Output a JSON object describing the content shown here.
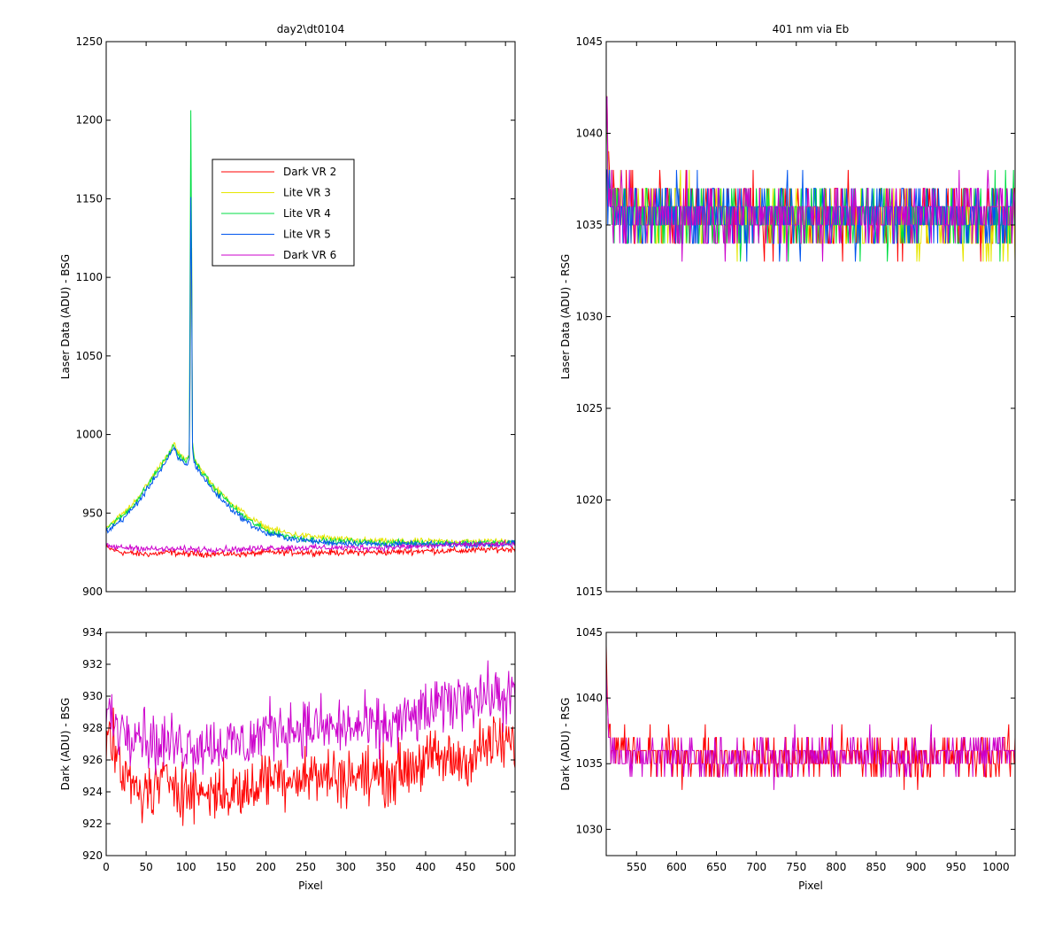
{
  "chart_data": [
    {
      "type": "line",
      "title": "day2\\dt0104",
      "xlabel": "",
      "ylabel": "Laser Data (ADU) - BSG",
      "xlim": [
        0,
        512
      ],
      "ylim": [
        900,
        1250
      ],
      "xticks": [
        0,
        50,
        100,
        150,
        200,
        250,
        300,
        350,
        400,
        450,
        500
      ],
      "yticks": [
        900,
        950,
        1000,
        1050,
        1100,
        1150,
        1200,
        1250
      ],
      "ytick_labels": [
        "900",
        "950",
        "1000",
        "1050",
        "1100",
        "1150",
        "1200",
        "1250"
      ],
      "legend_position": "upper-middle-left",
      "grid": false,
      "series": [
        {
          "name": "Dark VR 2",
          "color": "#ff0000",
          "x": [
            0,
            20,
            40,
            60,
            80,
            100,
            120,
            140,
            160,
            180,
            200,
            250,
            300,
            350,
            400,
            450,
            480,
            500,
            512
          ],
          "y": [
            928,
            925,
            924,
            924,
            925,
            924,
            924,
            924,
            924,
            924,
            925,
            925,
            925,
            925,
            926,
            926,
            927,
            927,
            927
          ]
        },
        {
          "name": "Lite VR 3",
          "color": "#e6e600",
          "x": [
            0,
            10,
            20,
            30,
            40,
            50,
            60,
            70,
            80,
            85,
            90,
            100,
            104,
            105,
            106,
            107,
            108,
            110,
            120,
            130,
            140,
            150,
            160,
            170,
            180,
            190,
            200,
            220,
            240,
            260,
            280,
            300,
            350,
            400,
            450,
            500,
            512
          ],
          "y": [
            941,
            945,
            949,
            954,
            960,
            967,
            975,
            982,
            990,
            994,
            988,
            984,
            986,
            1030,
            1090,
            1120,
            995,
            985,
            977,
            970,
            964,
            960,
            955,
            951,
            947,
            944,
            941,
            938,
            936,
            935,
            934,
            933,
            932,
            932,
            932,
            932,
            932
          ]
        },
        {
          "name": "Lite VR 4",
          "color": "#00dd44",
          "x": [
            0,
            10,
            20,
            30,
            40,
            50,
            60,
            70,
            80,
            85,
            90,
            100,
            104,
            105,
            106,
            107,
            108,
            110,
            120,
            130,
            140,
            150,
            160,
            170,
            180,
            190,
            200,
            220,
            240,
            260,
            280,
            300,
            350,
            400,
            450,
            500,
            512
          ],
          "y": [
            940,
            944,
            948,
            953,
            959,
            966,
            974,
            981,
            989,
            993,
            987,
            983,
            985,
            1090,
            1205,
            1110,
            994,
            984,
            976,
            969,
            963,
            959,
            953,
            949,
            945,
            942,
            939,
            936,
            934,
            933,
            932,
            932,
            931,
            931,
            931,
            931,
            932
          ]
        },
        {
          "name": "Lite VR 5",
          "color": "#0055ee",
          "x": [
            0,
            10,
            20,
            30,
            40,
            50,
            60,
            70,
            80,
            85,
            90,
            100,
            104,
            105,
            106,
            107,
            108,
            110,
            120,
            130,
            140,
            150,
            160,
            170,
            180,
            190,
            200,
            220,
            240,
            260,
            280,
            300,
            350,
            400,
            450,
            500,
            512
          ],
          "y": [
            938,
            942,
            946,
            951,
            957,
            964,
            972,
            979,
            987,
            991,
            985,
            981,
            983,
            1040,
            1150,
            1095,
            992,
            982,
            974,
            967,
            961,
            956,
            951,
            947,
            943,
            940,
            937,
            935,
            933,
            932,
            931,
            931,
            930,
            930,
            930,
            930,
            931
          ]
        },
        {
          "name": "Dark VR 6",
          "color": "#cc00cc",
          "x": [
            0,
            20,
            40,
            60,
            80,
            100,
            120,
            140,
            160,
            180,
            200,
            250,
            300,
            350,
            400,
            450,
            480,
            500,
            512
          ],
          "y": [
            929,
            928,
            928,
            927,
            927,
            927,
            927,
            927,
            927,
            927,
            928,
            928,
            928,
            928,
            929,
            930,
            930,
            930,
            930
          ]
        }
      ]
    },
    {
      "type": "line",
      "title": "401 nm via Eb",
      "xlabel": "",
      "ylabel": "Laser Data (ADU) - RSG",
      "xlim": [
        512,
        1024
      ],
      "ylim": [
        1015,
        1045
      ],
      "xticks": [
        550,
        600,
        650,
        700,
        750,
        800,
        850,
        900,
        950,
        1000
      ],
      "yticks": [
        1015,
        1020,
        1025,
        1030,
        1035,
        1040,
        1045
      ],
      "grid": false,
      "series": [
        {
          "color": "#ff0000",
          "x": [
            512,
            515,
            520,
            540,
            600,
            700,
            800,
            900,
            1000,
            1024
          ],
          "y": [
            1043,
            1037,
            1036,
            1036,
            1035.5,
            1035.5,
            1035.5,
            1035.5,
            1035.5,
            1036
          ]
        },
        {
          "color": "#e6e600",
          "x": [
            512,
            515,
            520,
            540,
            600,
            700,
            800,
            900,
            1000,
            1024
          ],
          "y": [
            1041,
            1037,
            1036,
            1035.5,
            1035.5,
            1035.5,
            1035.5,
            1035,
            1035,
            1035
          ]
        },
        {
          "color": "#00dd44",
          "x": [
            512,
            515,
            520,
            540,
            600,
            700,
            800,
            900,
            1000,
            1024
          ],
          "y": [
            1041,
            1037,
            1036,
            1035.5,
            1035.5,
            1035.5,
            1035.5,
            1035.5,
            1035.5,
            1035.5
          ]
        },
        {
          "color": "#0055ee",
          "x": [
            512,
            515,
            520,
            540,
            600,
            700,
            800,
            900,
            1000,
            1024
          ],
          "y": [
            1040,
            1036,
            1035.5,
            1035.5,
            1035.5,
            1035.5,
            1035.5,
            1035.5,
            1035.5,
            1035.5
          ]
        },
        {
          "color": "#cc00cc",
          "x": [
            512,
            515,
            520,
            540,
            600,
            700,
            800,
            900,
            1000,
            1024
          ],
          "y": [
            1041,
            1037,
            1036,
            1035.5,
            1035.5,
            1035.5,
            1035.5,
            1035.5,
            1036,
            1036
          ]
        }
      ]
    },
    {
      "type": "line",
      "title": "",
      "xlabel": "Pixel",
      "ylabel": "Dark (ADU) - BSG",
      "xlim": [
        0,
        512
      ],
      "ylim": [
        920,
        934
      ],
      "xticks": [
        0,
        50,
        100,
        150,
        200,
        250,
        300,
        350,
        400,
        450,
        500
      ],
      "yticks": [
        920,
        922,
        924,
        926,
        928,
        930,
        932,
        934
      ],
      "grid": false,
      "series": [
        {
          "color": "#ff0000",
          "x": [
            0,
            20,
            40,
            60,
            80,
            100,
            120,
            140,
            160,
            180,
            200,
            250,
            300,
            350,
            400,
            450,
            480,
            500,
            512
          ],
          "y": [
            928,
            925,
            924,
            924,
            925,
            924,
            924,
            924,
            924,
            924,
            925,
            925,
            925,
            925,
            926,
            926,
            927,
            927,
            927
          ]
        },
        {
          "color": "#cc00cc",
          "x": [
            0,
            20,
            40,
            60,
            80,
            100,
            120,
            140,
            160,
            180,
            200,
            250,
            300,
            350,
            400,
            450,
            480,
            500,
            512
          ],
          "y": [
            929,
            928,
            928,
            927,
            927,
            927,
            927,
            927,
            927,
            927,
            928,
            928,
            928,
            928,
            929,
            930,
            930,
            930,
            930
          ]
        }
      ]
    },
    {
      "type": "line",
      "title": "",
      "xlabel": "Pixel",
      "ylabel": "Dark (ADU) - RSG",
      "xlim": [
        512,
        1024
      ],
      "ylim": [
        1028,
        1045
      ],
      "xticks": [
        550,
        600,
        650,
        700,
        750,
        800,
        850,
        900,
        950,
        1000
      ],
      "yticks": [
        1030,
        1035,
        1040,
        1045
      ],
      "grid": false,
      "series": [
        {
          "color": "#ff0000",
          "x": [
            512,
            515,
            520,
            540,
            600,
            700,
            800,
            900,
            1000,
            1024
          ],
          "y": [
            1043,
            1037,
            1036,
            1036,
            1035.5,
            1035.5,
            1035.5,
            1035.5,
            1035.5,
            1036
          ]
        },
        {
          "color": "#cc00cc",
          "x": [
            512,
            515,
            520,
            540,
            600,
            700,
            800,
            900,
            1000,
            1024
          ],
          "y": [
            1041,
            1037,
            1036,
            1035.5,
            1035.5,
            1035.5,
            1035.5,
            1035.5,
            1036,
            1036
          ]
        }
      ]
    }
  ]
}
